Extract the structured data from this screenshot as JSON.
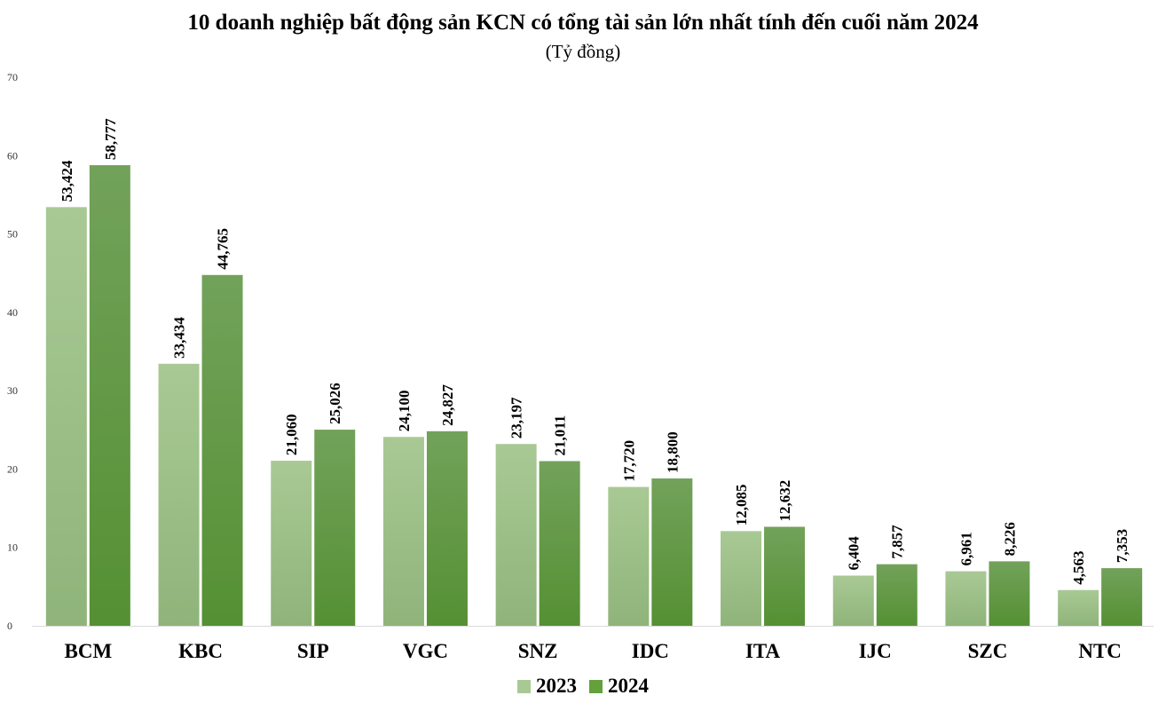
{
  "chart_data": {
    "type": "bar",
    "title": "10 doanh nghiệp bất động sản KCN có tổng tài sản lớn nhất tính đến cuối năm 2024",
    "subtitle": "(Tỷ đồng)",
    "xlabel": "",
    "ylabel": "",
    "ylim": [
      0,
      70
    ],
    "yticks": [
      0,
      10,
      20,
      30,
      40,
      50,
      60,
      70
    ],
    "grid": false,
    "legend_position": "bottom",
    "categories": [
      "BCM",
      "KBC",
      "SIP",
      "VGC",
      "SNZ",
      "IDC",
      "ITA",
      "IJC",
      "SZC",
      "NTC"
    ],
    "series": [
      {
        "name": "2023",
        "color": "#a9c994",
        "values": [
          53.424,
          33.434,
          21.06,
          24.1,
          23.197,
          17.72,
          12.085,
          6.404,
          6.961,
          4.563
        ],
        "labels": [
          "53,424",
          "33,434",
          "21,060",
          "24,100",
          "23,197",
          "17,720",
          "12,085",
          "6,404",
          "6,961",
          "4,563"
        ]
      },
      {
        "name": "2024",
        "color": "#64a03c",
        "values": [
          58.777,
          44.765,
          25.026,
          24.827,
          21.011,
          18.8,
          12.632,
          7.857,
          8.226,
          7.353
        ],
        "labels": [
          "58,777",
          "44,765",
          "25,026",
          "24,827",
          "21,011",
          "18,800",
          "12,632",
          "7,857",
          "8,226",
          "7,353"
        ]
      }
    ]
  }
}
